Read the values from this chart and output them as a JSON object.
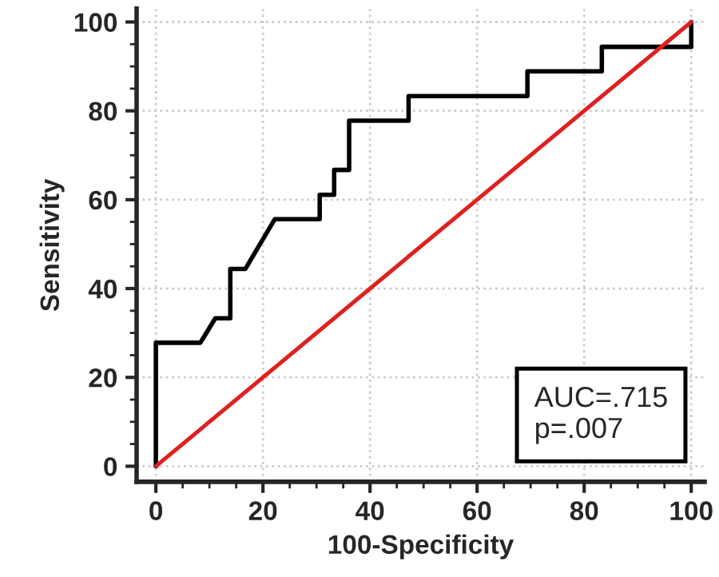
{
  "chart_data": {
    "type": "line",
    "xlabel": "100-Specificity",
    "ylabel": "Sensitivity",
    "xlim": [
      -3.6,
      102.5
    ],
    "ylim": [
      -3.5,
      103
    ],
    "xticks": [
      0,
      20,
      40,
      60,
      80,
      100
    ],
    "yticks": [
      0,
      20,
      40,
      60,
      80,
      100
    ],
    "grid": true,
    "series": [
      {
        "color": "#000000",
        "x": [
          0,
          0,
          8.3,
          11.1,
          13.9,
          13.9,
          16.7,
          22.2,
          30.6,
          30.6,
          33.3,
          33.3,
          36.1,
          36.1,
          47.2,
          47.2,
          69.4,
          69.4,
          83.3,
          83.3,
          100,
          100
        ],
        "values": [
          0,
          27.8,
          27.8,
          33.3,
          33.3,
          44.4,
          44.4,
          55.6,
          55.6,
          61.1,
          61.1,
          66.7,
          66.7,
          77.8,
          77.8,
          83.3,
          83.3,
          88.9,
          88.9,
          94.4,
          94.4,
          100
        ]
      },
      {
        "color": "#e02020",
        "x": [
          0,
          100
        ],
        "values": [
          0,
          100
        ]
      }
    ],
    "annotations": [
      "AUC=.715",
      "p=.007"
    ]
  }
}
